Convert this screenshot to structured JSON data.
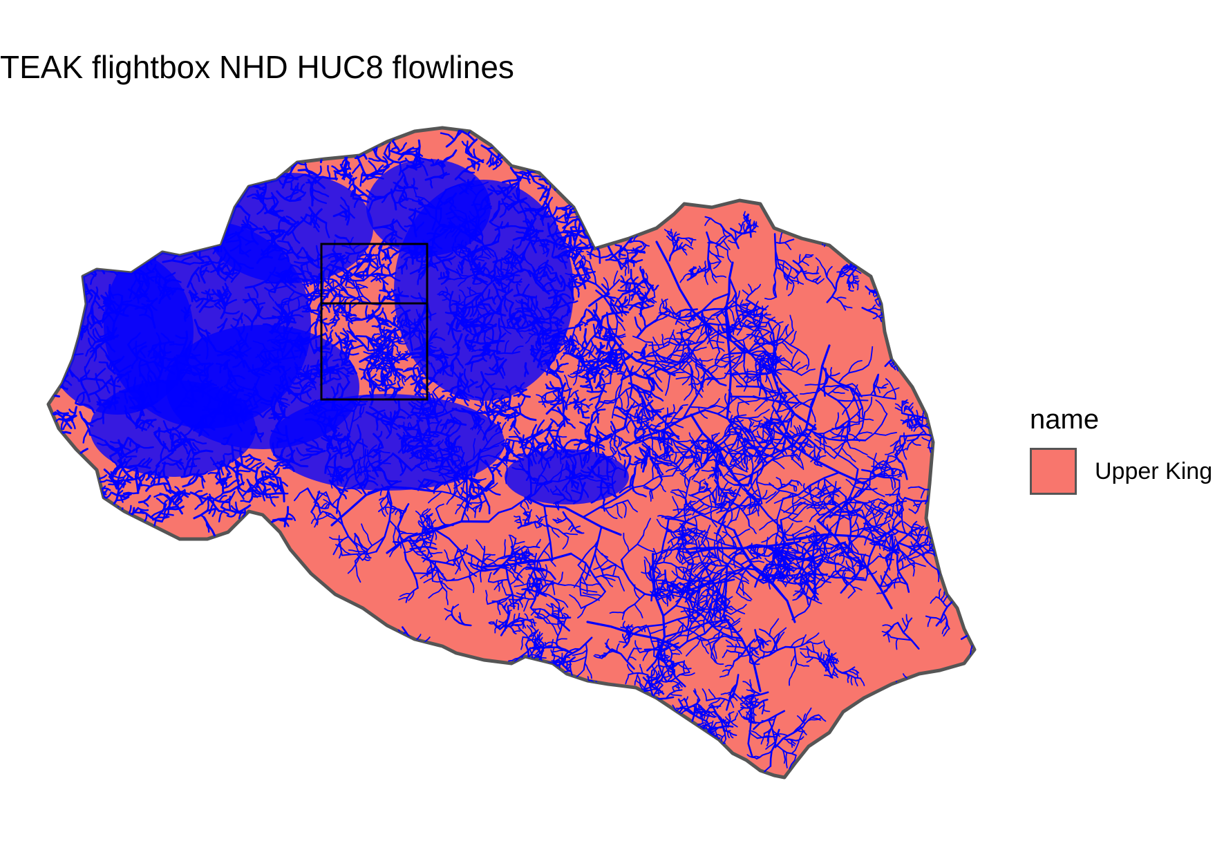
{
  "title": "TEAK flightbox NHD HUC8 flowlines",
  "legend": {
    "title": "name",
    "items": [
      {
        "label": "Upper King",
        "color": "#F8766D"
      }
    ]
  },
  "colors": {
    "watershed_fill": "#F8766D",
    "watershed_border": "#555555",
    "flowlines": "#0000FF",
    "flightbox": "#000000"
  }
}
